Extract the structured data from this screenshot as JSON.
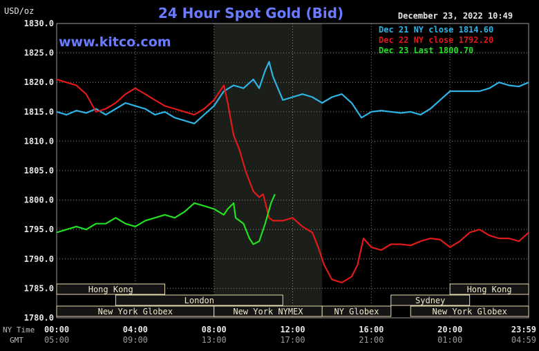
{
  "header": {
    "title": "24 Hour Spot Gold (Bid)",
    "units": "USD/oz",
    "date": "December 23, 2022 10:49",
    "watermark": "www.kitco.com"
  },
  "legend": [
    {
      "label": "Dec 21 NY close 1814.60",
      "color": "#2fb4e6"
    },
    {
      "label": "Dec 22 NY close 1792.20",
      "color": "#e01a1a"
    },
    {
      "label": "Dec 23 Last 1800.70",
      "color": "#22e022"
    }
  ],
  "axis_labels": {
    "ny_time": "NY Time",
    "gmt": "GMT"
  },
  "sessions": [
    {
      "name": "Hong Kong",
      "start": 0,
      "end": 5.5,
      "row": 0
    },
    {
      "name": "Hong Kong",
      "start": 20,
      "end": 24,
      "row": 0
    },
    {
      "name": "London",
      "start": 3,
      "end": 11.5,
      "row": 1
    },
    {
      "name": "Sydney",
      "start": 17,
      "end": 21,
      "row": 1
    },
    {
      "name": "New York Globex",
      "start": 0,
      "end": 8,
      "row": 2
    },
    {
      "name": "New York NYMEX",
      "start": 8,
      "end": 13.5,
      "row": 2
    },
    {
      "name": "NY Globex",
      "start": 13.5,
      "end": 17,
      "row": 2
    },
    {
      "name": "New York Globex",
      "start": 18,
      "end": 24,
      "row": 2
    }
  ],
  "chart_data": {
    "type": "line",
    "title": "24 Hour Spot Gold (Bid)",
    "ylabel": "USD/oz",
    "ylim": [
      1780,
      1830
    ],
    "yticks": [
      "1830.0",
      "1825.0",
      "1820.0",
      "1815.0",
      "1810.0",
      "1805.0",
      "1800.0",
      "1795.0",
      "1790.0",
      "1785.0",
      "1780.0"
    ],
    "xlim": [
      0,
      24
    ],
    "xticks_ny": [
      "00:00",
      "04:00",
      "08:00",
      "12:00",
      "16:00",
      "20:00",
      "23:59"
    ],
    "xticks_gmt": [
      "05:00",
      "09:00",
      "13:00",
      "17:00",
      "21:00",
      "01:00",
      "04:59"
    ],
    "shaded_region": [
      8.0,
      13.5
    ],
    "series": [
      {
        "name": "Dec 21 NY close 1814.60",
        "color": "#2fb4e6",
        "points": [
          [
            0,
            1815
          ],
          [
            0.5,
            1814.5
          ],
          [
            1,
            1815.2
          ],
          [
            1.5,
            1814.8
          ],
          [
            2,
            1815.5
          ],
          [
            2.5,
            1814.5
          ],
          [
            3,
            1815.5
          ],
          [
            3.5,
            1816.5
          ],
          [
            4,
            1816
          ],
          [
            4.5,
            1815.5
          ],
          [
            5,
            1814.5
          ],
          [
            5.5,
            1815
          ],
          [
            6,
            1814
          ],
          [
            6.5,
            1813.5
          ],
          [
            7,
            1813
          ],
          [
            7.5,
            1814.5
          ],
          [
            8,
            1816
          ],
          [
            8.5,
            1818.5
          ],
          [
            9,
            1819.5
          ],
          [
            9.5,
            1819
          ],
          [
            10,
            1820.5
          ],
          [
            10.3,
            1819
          ],
          [
            10.6,
            1822
          ],
          [
            10.8,
            1823.5
          ],
          [
            11,
            1821
          ],
          [
            11.5,
            1817
          ],
          [
            12,
            1817.5
          ],
          [
            12.5,
            1818
          ],
          [
            13,
            1817.5
          ],
          [
            13.5,
            1816.5
          ],
          [
            14,
            1817.5
          ],
          [
            14.5,
            1818
          ],
          [
            15,
            1816.5
          ],
          [
            15.5,
            1814
          ],
          [
            16,
            1815
          ],
          [
            16.5,
            1815.2
          ],
          [
            17,
            1815
          ],
          [
            17.5,
            1814.8
          ],
          [
            18,
            1815
          ],
          [
            18.5,
            1814.5
          ],
          [
            19,
            1815.5
          ],
          [
            19.5,
            1817
          ],
          [
            20,
            1818.5
          ],
          [
            20.5,
            1818.5
          ],
          [
            21,
            1818.5
          ],
          [
            21.5,
            1818.5
          ],
          [
            22,
            1819
          ],
          [
            22.5,
            1820
          ],
          [
            23,
            1819.5
          ],
          [
            23.5,
            1819.3
          ],
          [
            24,
            1820
          ]
        ]
      },
      {
        "name": "Dec 22 NY close 1792.20",
        "color": "#e01a1a",
        "points": [
          [
            0,
            1820.5
          ],
          [
            0.5,
            1820
          ],
          [
            1,
            1819.5
          ],
          [
            1.5,
            1818
          ],
          [
            2,
            1815
          ],
          [
            2.5,
            1815.5
          ],
          [
            3,
            1816.5
          ],
          [
            3.5,
            1818
          ],
          [
            4,
            1819
          ],
          [
            4.5,
            1818
          ],
          [
            5,
            1817
          ],
          [
            5.5,
            1816
          ],
          [
            6,
            1815.5
          ],
          [
            6.5,
            1815
          ],
          [
            7,
            1814.5
          ],
          [
            7.5,
            1815.5
          ],
          [
            8,
            1817
          ],
          [
            8.3,
            1818.5
          ],
          [
            8.5,
            1819.5
          ],
          [
            8.7,
            1816.5
          ],
          [
            9,
            1811
          ],
          [
            9.3,
            1808.5
          ],
          [
            9.6,
            1805
          ],
          [
            10,
            1801.5
          ],
          [
            10.3,
            1800.5
          ],
          [
            10.5,
            1801
          ],
          [
            10.8,
            1797
          ],
          [
            11,
            1796.5
          ],
          [
            11.5,
            1796.5
          ],
          [
            12,
            1797
          ],
          [
            12.5,
            1795.5
          ],
          [
            13,
            1794.5
          ],
          [
            13.3,
            1792
          ],
          [
            13.6,
            1789
          ],
          [
            14,
            1786.5
          ],
          [
            14.5,
            1786
          ],
          [
            15,
            1787
          ],
          [
            15.3,
            1789
          ],
          [
            15.6,
            1793.5
          ],
          [
            16,
            1792
          ],
          [
            16.5,
            1791.5
          ],
          [
            17,
            1792.5
          ],
          [
            17.5,
            1792.5
          ],
          [
            18,
            1792.3
          ],
          [
            18.5,
            1793
          ],
          [
            19,
            1793.5
          ],
          [
            19.5,
            1793.3
          ],
          [
            20,
            1792
          ],
          [
            20.5,
            1793
          ],
          [
            21,
            1794.5
          ],
          [
            21.5,
            1795
          ],
          [
            22,
            1794
          ],
          [
            22.5,
            1793.5
          ],
          [
            23,
            1793.5
          ],
          [
            23.5,
            1793
          ],
          [
            24,
            1794.5
          ]
        ]
      },
      {
        "name": "Dec 23 Last 1800.70",
        "color": "#22e022",
        "points": [
          [
            0,
            1794.5
          ],
          [
            0.5,
            1795
          ],
          [
            1,
            1795.5
          ],
          [
            1.5,
            1795
          ],
          [
            2,
            1796
          ],
          [
            2.5,
            1796
          ],
          [
            3,
            1797
          ],
          [
            3.5,
            1796
          ],
          [
            4,
            1795.5
          ],
          [
            4.5,
            1796.5
          ],
          [
            5,
            1797
          ],
          [
            5.5,
            1797.5
          ],
          [
            6,
            1797
          ],
          [
            6.5,
            1798
          ],
          [
            7,
            1799.5
          ],
          [
            7.5,
            1799
          ],
          [
            8,
            1798.5
          ],
          [
            8.5,
            1797.5
          ],
          [
            8.7,
            1798.5
          ],
          [
            9,
            1799.5
          ],
          [
            9.1,
            1797
          ],
          [
            9.5,
            1796
          ],
          [
            9.8,
            1793.5
          ],
          [
            10,
            1792.5
          ],
          [
            10.3,
            1793
          ],
          [
            10.6,
            1796
          ],
          [
            10.9,
            1799.5
          ],
          [
            11.1,
            1801
          ]
        ]
      }
    ]
  }
}
